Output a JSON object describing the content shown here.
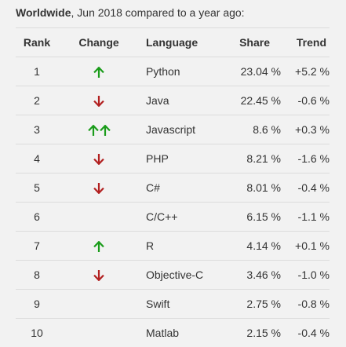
{
  "caption": {
    "bold": "Worldwide",
    "rest": ", Jun 2018 compared to a year ago:"
  },
  "colors": {
    "up": "#1a9c1a",
    "down": "#b22020"
  },
  "chart_data": {
    "type": "table",
    "columns": [
      "Rank",
      "Change",
      "Language",
      "Share",
      "Trend"
    ],
    "rows": [
      {
        "rank": "1",
        "change": "up",
        "change_count": 1,
        "language": "Python",
        "share": "23.04 %",
        "trend": "+5.2 %"
      },
      {
        "rank": "2",
        "change": "down",
        "change_count": 1,
        "language": "Java",
        "share": "22.45 %",
        "trend": "-0.6 %"
      },
      {
        "rank": "3",
        "change": "up",
        "change_count": 2,
        "language": "Javascript",
        "share": "8.6 %",
        "trend": "+0.3 %"
      },
      {
        "rank": "4",
        "change": "down",
        "change_count": 1,
        "language": "PHP",
        "share": "8.21 %",
        "trend": "-1.6 %"
      },
      {
        "rank": "5",
        "change": "down",
        "change_count": 1,
        "language": "C#",
        "share": "8.01 %",
        "trend": "-0.4 %"
      },
      {
        "rank": "6",
        "change": "none",
        "change_count": 0,
        "language": "C/C++",
        "share": "6.15 %",
        "trend": "-1.1 %"
      },
      {
        "rank": "7",
        "change": "up",
        "change_count": 1,
        "language": "R",
        "share": "4.14 %",
        "trend": "+0.1 %"
      },
      {
        "rank": "8",
        "change": "down",
        "change_count": 1,
        "language": "Objective-C",
        "share": "3.46 %",
        "trend": "-1.0 %"
      },
      {
        "rank": "9",
        "change": "none",
        "change_count": 0,
        "language": "Swift",
        "share": "2.75 %",
        "trend": "-0.8 %"
      },
      {
        "rank": "10",
        "change": "none",
        "change_count": 0,
        "language": "Matlab",
        "share": "2.15 %",
        "trend": "-0.4 %"
      }
    ]
  }
}
